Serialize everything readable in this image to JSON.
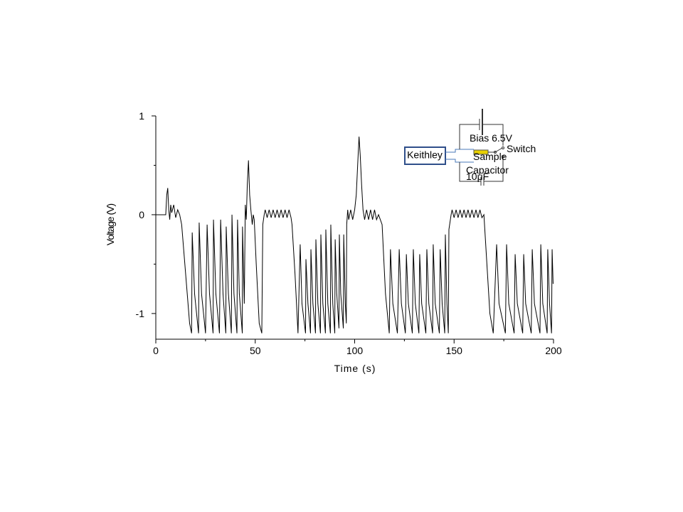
{
  "chart_data": {
    "type": "line",
    "x_label": "Time (s)",
    "y_label": "Voltage (V)",
    "xlim": [
      0,
      200
    ],
    "ylim": [
      -1.26,
      1
    ],
    "xticks": [
      0,
      50,
      100,
      150,
      200
    ],
    "yticks": [
      -1,
      0,
      1
    ],
    "x_minor_ticks": [
      25,
      75,
      125,
      175
    ],
    "y_minor_ticks": [
      -0.5,
      0.5
    ],
    "inset_labels": [
      "Keithley",
      "Bias 6.5V",
      "Switch",
      "Sample",
      "Capacitor",
      "10μF"
    ],
    "x": [
      0,
      5,
      5.5,
      6,
      6.5,
      7,
      7.5,
      8,
      9,
      10,
      11,
      12,
      13,
      15,
      17,
      18,
      18.3,
      19.5,
      21.5,
      21.8,
      23,
      25,
      25.8,
      27,
      28.8,
      29,
      30.2,
      32,
      32.6,
      33.8,
      35.2,
      35.4,
      36.5,
      38,
      38.3,
      39.3,
      40.8,
      41.1,
      42,
      43.5,
      43.6,
      44.5,
      45,
      45.5,
      46,
      46.6,
      47.2,
      47.8,
      48.5,
      49,
      49.5,
      50.5,
      52,
      53.3,
      53.8,
      54.5,
      55,
      56,
      57,
      58,
      59,
      60,
      61,
      62,
      63,
      64,
      65,
      66,
      67,
      68,
      68.5,
      70,
      71.5,
      72.6,
      73.5,
      75.3,
      75.5,
      76.5,
      77.8,
      78,
      79,
      80.3,
      80.5,
      81.5,
      82.8,
      83,
      84,
      85.3,
      85.5,
      86.5,
      87.8,
      88,
      89,
      90,
      90.2,
      91,
      92.1,
      92.3,
      93,
      94.3,
      94.5,
      95.3,
      95.8,
      96,
      96.5,
      97,
      98,
      99,
      100,
      100.8,
      101.5,
      102.2,
      102.8,
      103.5,
      104.2,
      105,
      106,
      107,
      108,
      109,
      110,
      111,
      112,
      113.8,
      115.5,
      117.4,
      118,
      119.2,
      121.5,
      122.4,
      123.5,
      125.5,
      126,
      127,
      129,
      129.5,
      130.5,
      132.3,
      132.7,
      133.7,
      135.8,
      136.3,
      137.3,
      139.2,
      139.5,
      140.5,
      142.6,
      143,
      144,
      145.3,
      145.6,
      146.4,
      147.1,
      147.4,
      148.5,
      149,
      150,
      151,
      152,
      153,
      154,
      155,
      156,
      157,
      158,
      159,
      160,
      161,
      162,
      163,
      164,
      165,
      166.5,
      168,
      169.7,
      171.4,
      172.6,
      175.8,
      176.4,
      177.5,
      180.2,
      180.7,
      181.8,
      184.5,
      185,
      186,
      188.8,
      189.3,
      190.4,
      193.2,
      193.6,
      194.6,
      196.8,
      197.1,
      198,
      199,
      199.3,
      199.8
    ],
    "series": [
      {
        "name": "Voltage",
        "color": "#000000",
        "values": [
          0,
          0,
          0.2,
          0.27,
          0.05,
          -0.05,
          0.1,
          0.02,
          0.1,
          -0.03,
          0.05,
          0,
          -0.1,
          -0.6,
          -1.1,
          -1.2,
          -0.18,
          -0.8,
          -1.2,
          -0.08,
          -0.8,
          -1.2,
          -0.1,
          -0.8,
          -1.2,
          -0.05,
          -0.8,
          -1.2,
          -0.05,
          -0.8,
          -1.2,
          -0.12,
          -0.8,
          -1.2,
          0,
          -0.8,
          -1.2,
          -0.05,
          -0.8,
          -1.2,
          -0.12,
          -0.9,
          0.1,
          -0.05,
          0.3,
          0.55,
          0.2,
          0.05,
          -0.1,
          0,
          -0.05,
          -0.5,
          -1.1,
          -1.2,
          -0.1,
          0,
          0.05,
          -0.03,
          0.05,
          -0.03,
          0.05,
          -0.03,
          0.05,
          -0.03,
          0.05,
          -0.03,
          0.05,
          -0.03,
          0.05,
          -0.03,
          -0.1,
          -0.6,
          -1.2,
          -0.3,
          -0.9,
          -1.2,
          -0.45,
          -0.9,
          -1.2,
          -0.35,
          -0.9,
          -1.2,
          -0.25,
          -0.9,
          -1.2,
          -0.2,
          -0.9,
          -1.2,
          -0.15,
          -0.9,
          -1.2,
          -0.1,
          -0.9,
          -1.2,
          -0.25,
          -0.8,
          -1.15,
          -0.2,
          -0.8,
          -1.15,
          -0.2,
          -0.9,
          -1.1,
          -0.1,
          0.05,
          -0.05,
          0.05,
          -0.05,
          0.05,
          0.2,
          0.5,
          0.79,
          0.6,
          0.3,
          0.05,
          -0.05,
          0.05,
          -0.05,
          0.05,
          -0.05,
          0.05,
          -0.05,
          0,
          -0.1,
          -0.8,
          -1.2,
          -0.35,
          -0.9,
          -1.2,
          -0.35,
          -0.9,
          -1.2,
          -0.4,
          -0.9,
          -1.2,
          -0.35,
          -0.9,
          -1.2,
          -0.4,
          -0.9,
          -1.2,
          -0.35,
          -0.9,
          -1.2,
          -0.3,
          -0.9,
          -1.2,
          -0.35,
          -0.9,
          -1.2,
          -0.2,
          -0.9,
          -1.2,
          -0.15,
          0,
          0.05,
          -0.03,
          0.05,
          -0.03,
          0.05,
          -0.03,
          0.05,
          -0.03,
          0.05,
          -0.03,
          0.05,
          -0.03,
          0.05,
          -0.03,
          0.05,
          -0.03,
          0,
          -0.5,
          -1.0,
          -1.2,
          -0.3,
          -0.9,
          -1.2,
          -0.3,
          -0.9,
          -1.2,
          -0.4,
          -0.9,
          -1.2,
          -0.4,
          -0.9,
          -1.2,
          -0.35,
          -0.9,
          -1.2,
          -0.3,
          -0.9,
          -1.2,
          -0.35,
          -0.9,
          -1.2,
          -0.35,
          -0.7
        ]
      }
    ]
  }
}
